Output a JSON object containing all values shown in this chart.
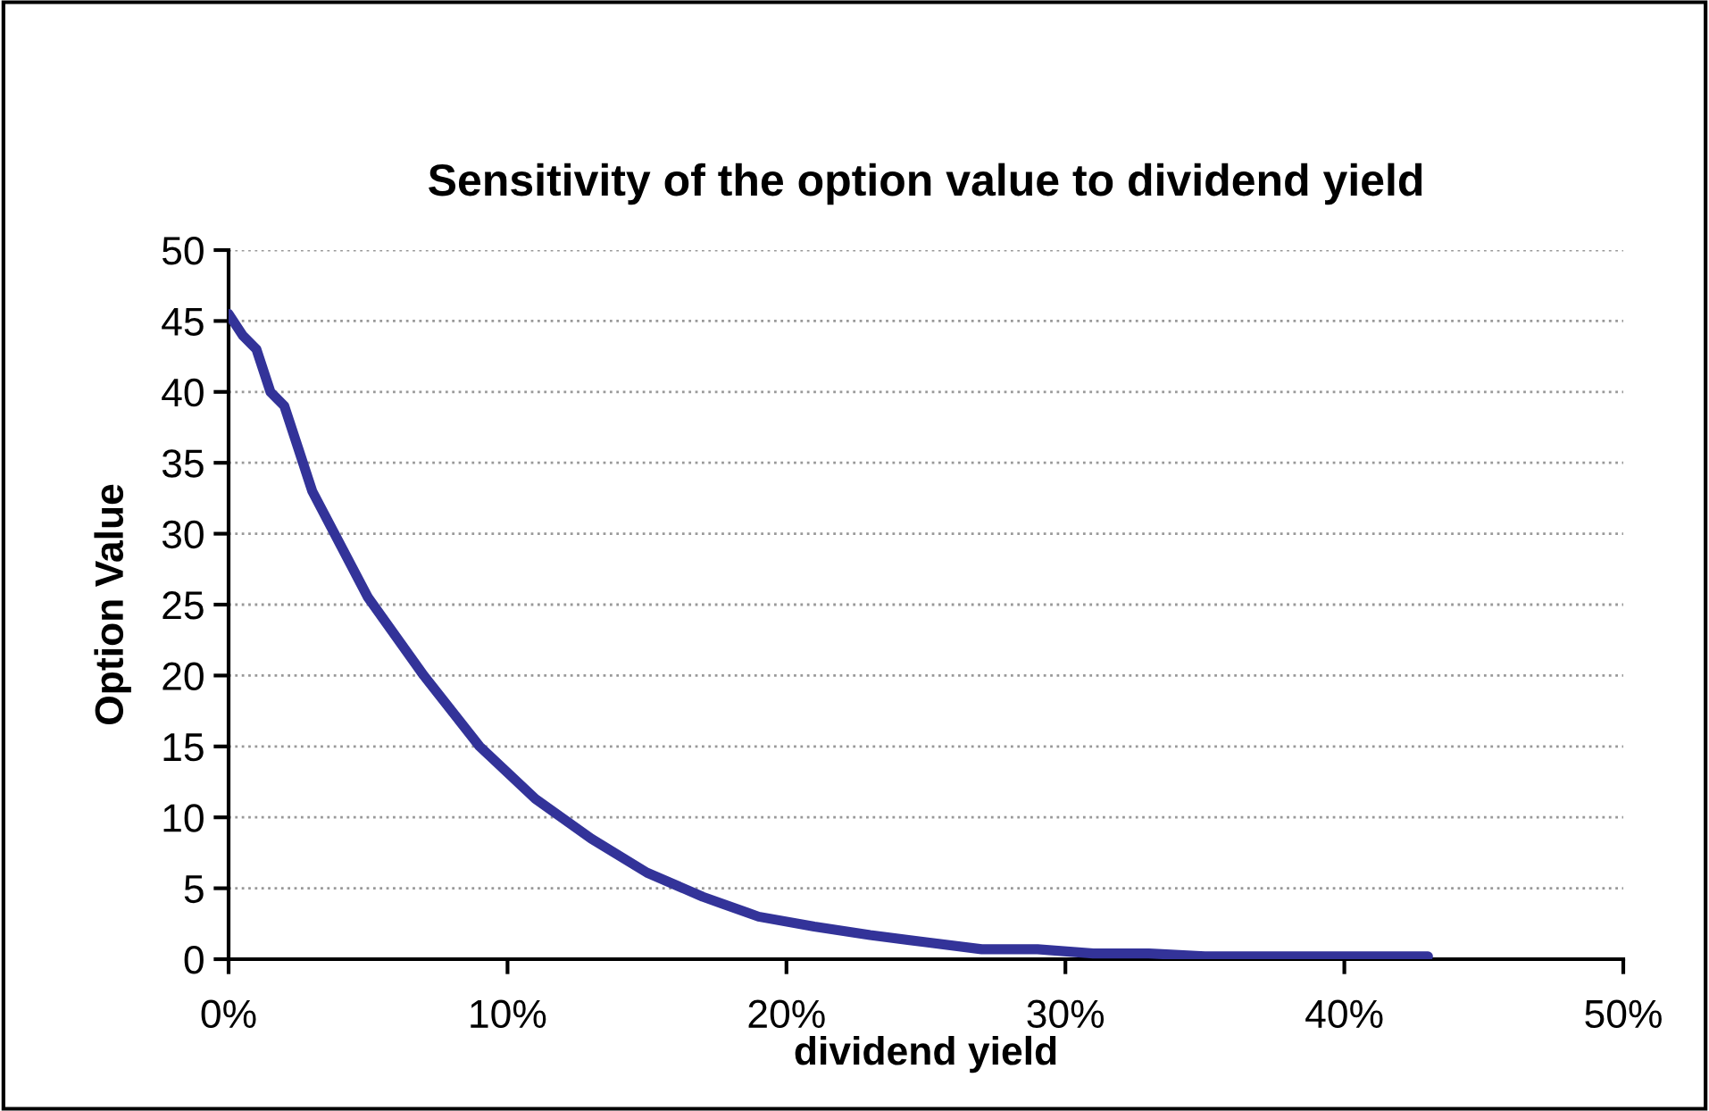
{
  "chart_data": {
    "type": "line",
    "title": "Sensitivity of the option value to dividend yield",
    "xlabel": "dividend yield",
    "ylabel": "Option Value",
    "x": [
      0,
      0.5,
      1,
      1.5,
      2,
      2.5,
      3,
      5,
      7,
      9,
      11,
      13,
      15,
      17,
      19,
      21,
      23,
      25,
      27,
      29,
      31,
      33,
      35,
      37,
      39,
      41,
      43
    ],
    "series": [
      {
        "color": "#333399",
        "values": [
          45.5,
          44,
          43,
          40,
          39,
          36,
          33,
          25.5,
          20,
          15,
          11.3,
          8.5,
          6.1,
          4.4,
          3.0,
          2.3,
          1.7,
          1.2,
          0.7,
          0.7,
          0.4,
          0.4,
          0.2,
          0.2,
          0.2,
          0.2,
          0.2
        ]
      }
    ],
    "xlim": [
      0,
      50
    ],
    "xticks": [
      {
        "value": 0,
        "label": "0%"
      },
      {
        "value": 10,
        "label": "10%"
      },
      {
        "value": 20,
        "label": "20%"
      },
      {
        "value": 30,
        "label": "30%"
      },
      {
        "value": 40,
        "label": "40%"
      },
      {
        "value": 50,
        "label": "50%"
      }
    ],
    "ylim": [
      0,
      50
    ],
    "yticks": [
      0,
      5,
      10,
      15,
      20,
      25,
      30,
      35,
      40,
      45,
      50
    ],
    "grid": "y"
  }
}
